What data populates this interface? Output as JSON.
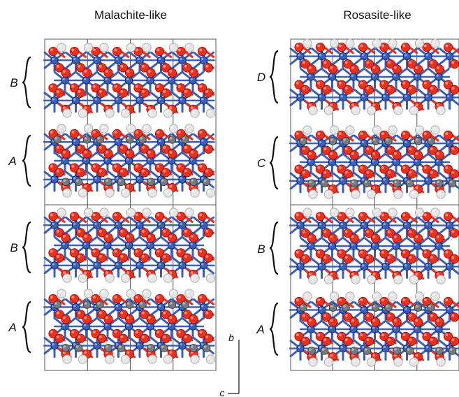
{
  "panels": [
    {
      "title": "Malachite-like",
      "layers": [
        "B",
        "A",
        "B",
        "A"
      ]
    },
    {
      "title": "Rosasite-like",
      "layers": [
        "D",
        "C",
        "B",
        "A"
      ]
    }
  ],
  "axes": {
    "vertical": "b",
    "horizontal": "c"
  },
  "colors": {
    "oxygen": "#e8321e",
    "metal": "#3a5fb5",
    "hydrogen": "#e6e6e6",
    "carbon": "#777a7e",
    "frame": "#555555",
    "brace": "#111111"
  }
}
